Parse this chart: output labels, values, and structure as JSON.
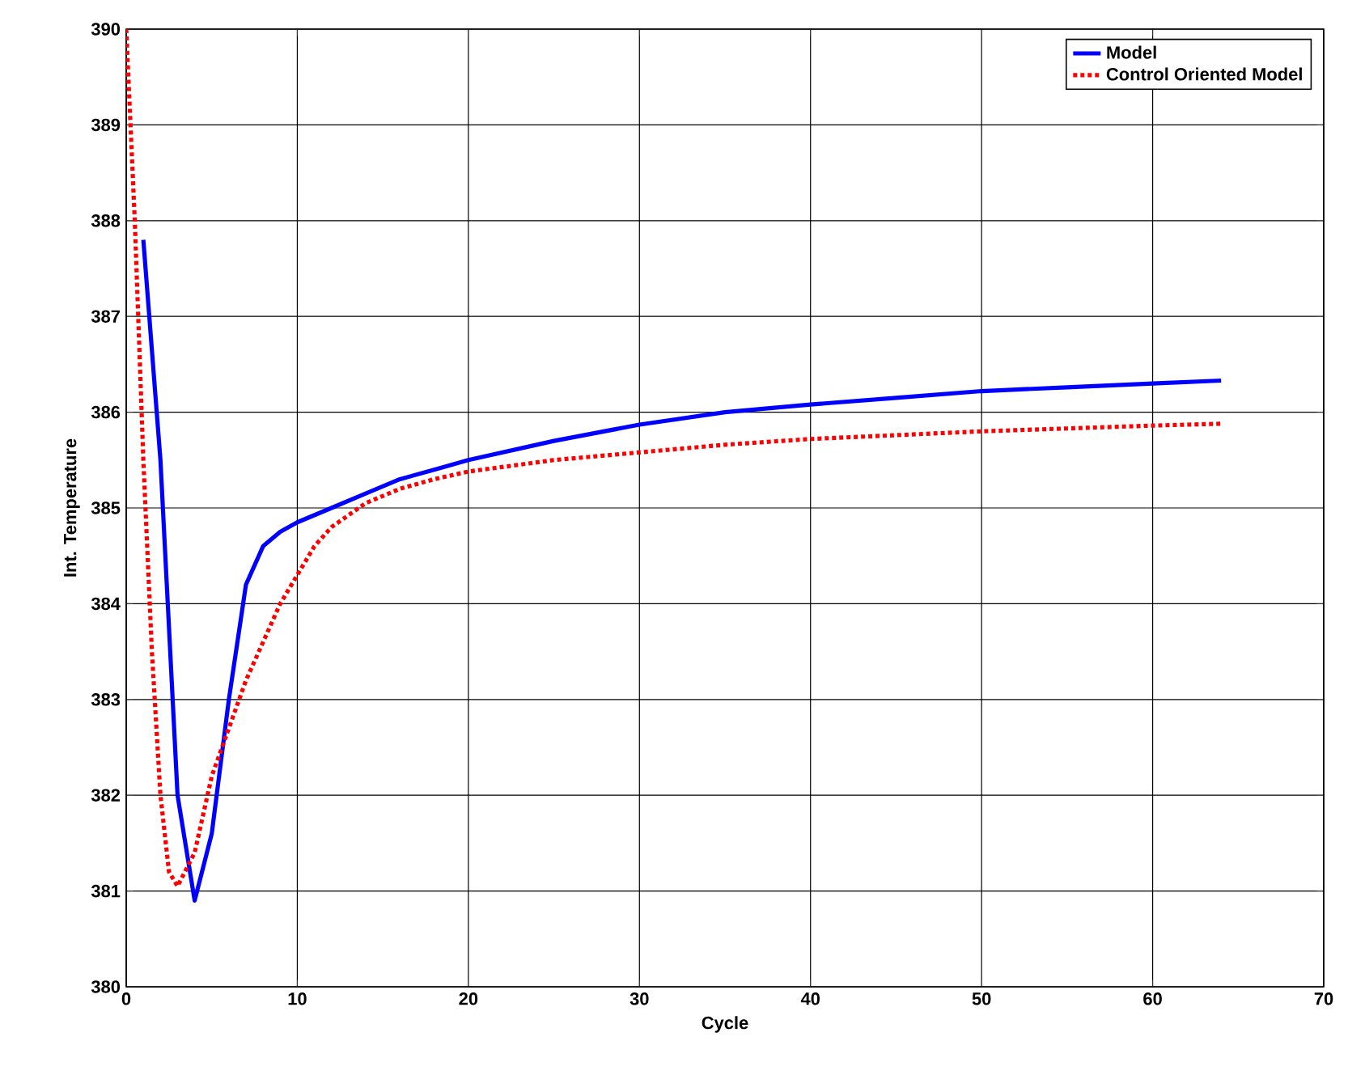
{
  "chart_data": {
    "type": "line",
    "xlabel": "Cycle",
    "ylabel": "Int. Temperature",
    "xlim": [
      0,
      70
    ],
    "xticks": [
      0,
      10,
      20,
      30,
      40,
      50,
      60,
      70
    ],
    "ylim": [
      380,
      390
    ],
    "yticks": [
      380,
      381,
      382,
      383,
      384,
      385,
      386,
      387,
      388,
      389,
      390
    ],
    "grid": true,
    "legend": "top right",
    "series": [
      {
        "name": "Model",
        "color": "#0000ff",
        "line_style": "solid",
        "x": [
          1,
          2,
          3,
          4,
          5,
          6,
          7,
          8,
          9,
          10,
          12,
          14,
          16,
          18,
          20,
          25,
          30,
          35,
          40,
          45,
          50,
          55,
          60,
          64
        ],
        "values": [
          387.8,
          385.5,
          382.0,
          380.9,
          381.6,
          383.0,
          384.2,
          384.6,
          384.75,
          384.85,
          385.0,
          385.15,
          385.3,
          385.4,
          385.5,
          385.7,
          385.87,
          386.0,
          386.08,
          386.15,
          386.22,
          386.26,
          386.3,
          386.33
        ]
      },
      {
        "name": "Control Oriented Model",
        "color": "#ff0000",
        "line_style": "dotted",
        "x": [
          0,
          0.5,
          1,
          1.5,
          2,
          2.5,
          3,
          4,
          5,
          6,
          7,
          8,
          9,
          10,
          11,
          12,
          14,
          16,
          18,
          20,
          25,
          30,
          35,
          40,
          45,
          50,
          55,
          60,
          64
        ],
        "values": [
          390,
          388,
          385.5,
          383.5,
          382,
          381.2,
          381.05,
          381.4,
          382.2,
          382.7,
          383.2,
          383.6,
          384.0,
          384.3,
          384.6,
          384.8,
          385.05,
          385.2,
          385.3,
          385.38,
          385.5,
          385.58,
          385.66,
          385.72,
          385.76,
          385.8,
          385.83,
          385.86,
          385.88
        ]
      }
    ]
  }
}
